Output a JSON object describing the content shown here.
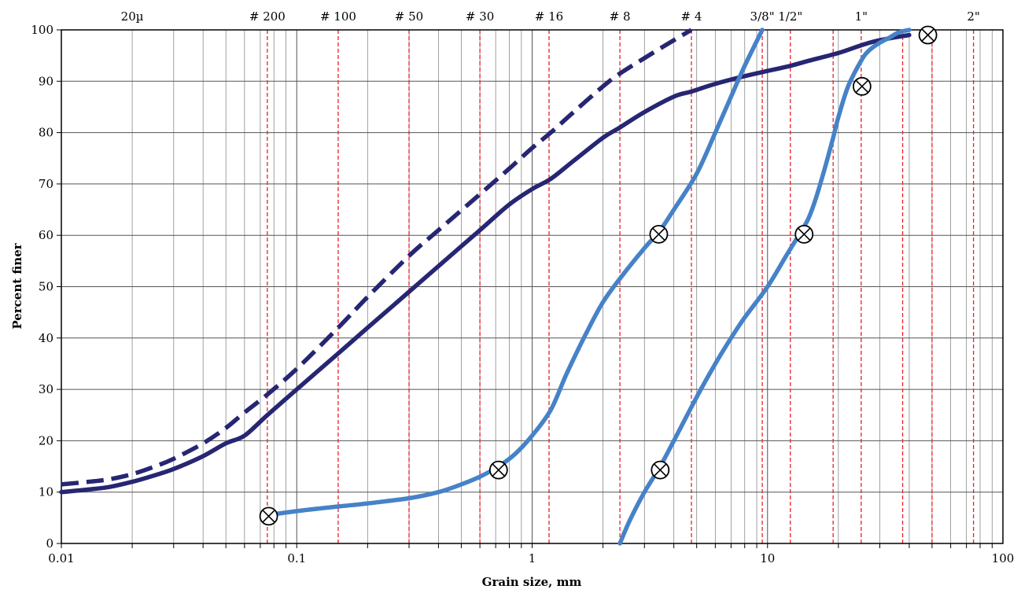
{
  "chart_data": {
    "type": "line",
    "title": "",
    "xlabel": "Grain size, mm",
    "ylabel": "Percent finer",
    "xscale": "log",
    "xlim": [
      0.01,
      100
    ],
    "ylim": [
      0,
      100
    ],
    "x_ticks": [
      {
        "value": 0.01,
        "label": "0.01"
      },
      {
        "value": 0.1,
        "label": "0.1"
      },
      {
        "value": 1,
        "label": "1"
      },
      {
        "value": 10,
        "label": "10"
      },
      {
        "value": 100,
        "label": "100"
      }
    ],
    "y_ticks": [
      {
        "value": 0,
        "label": "0"
      },
      {
        "value": 10,
        "label": "10"
      },
      {
        "value": 20,
        "label": "20"
      },
      {
        "value": 30,
        "label": "30"
      },
      {
        "value": 40,
        "label": "40"
      },
      {
        "value": 50,
        "label": "50"
      },
      {
        "value": 60,
        "label": "60"
      },
      {
        "value": 70,
        "label": "70"
      },
      {
        "value": 80,
        "label": "80"
      },
      {
        "value": 90,
        "label": "90"
      },
      {
        "value": 100,
        "label": "100"
      }
    ],
    "top_labels": [
      {
        "value": 0.02,
        "label": "20µ",
        "line": false
      },
      {
        "value": 0.075,
        "label": "# 200",
        "line": true
      },
      {
        "value": 0.15,
        "label": "# 100",
        "line": true
      },
      {
        "value": 0.3,
        "label": "# 50",
        "line": true
      },
      {
        "value": 0.6,
        "label": "# 30",
        "line": true
      },
      {
        "value": 1.18,
        "label": "# 16",
        "line": true
      },
      {
        "value": 2.36,
        "label": "# 8",
        "line": true
      },
      {
        "value": 4.75,
        "label": "# 4",
        "line": true
      },
      {
        "value": 9.5,
        "label": "3/8\"",
        "line": true
      },
      {
        "value": 12.5,
        "label": "1/2\"",
        "line": true
      },
      {
        "value": 19,
        "label": "",
        "line": true
      },
      {
        "value": 25,
        "label": "1\"",
        "line": true
      },
      {
        "value": 37.5,
        "label": "",
        "line": true
      },
      {
        "value": 50,
        "label": "",
        "line": true
      },
      {
        "value": 75,
        "label": "2\"",
        "line": true
      }
    ],
    "grid": true,
    "series": [
      {
        "style": "solid",
        "color": "#262673",
        "x": [
          0.01,
          0.013,
          0.016,
          0.02,
          0.025,
          0.03,
          0.04,
          0.05,
          0.06,
          0.075,
          0.1,
          0.15,
          0.2,
          0.3,
          0.4,
          0.6,
          0.8,
          1.0,
          1.2,
          1.5,
          2.0,
          2.36,
          3.0,
          4.0,
          4.75,
          6.0,
          8.0,
          10,
          12.5,
          15,
          20,
          25,
          30,
          40
        ],
        "y": [
          10,
          10.5,
          11,
          12,
          13.3,
          14.5,
          17,
          19.5,
          21,
          25,
          30,
          37,
          42,
          49,
          54,
          61,
          66,
          69,
          71,
          74.5,
          79,
          81,
          84,
          87,
          88,
          89.5,
          91,
          92,
          93,
          94,
          95.5,
          97,
          98,
          99
        ]
      },
      {
        "style": "dashed",
        "color": "#262673",
        "x": [
          0.01,
          0.013,
          0.016,
          0.02,
          0.025,
          0.03,
          0.04,
          0.05,
          0.06,
          0.075,
          0.1,
          0.15,
          0.2,
          0.3,
          0.4,
          0.6,
          0.8,
          1.0,
          1.2,
          1.5,
          2.0,
          2.36,
          3.0,
          4.0,
          4.75
        ],
        "y": [
          11.5,
          12,
          12.5,
          13.5,
          15,
          16.5,
          19.5,
          22.5,
          25.5,
          29,
          34,
          42,
          48,
          56,
          61,
          68,
          73,
          77,
          80,
          84,
          89,
          91.5,
          94.5,
          98,
          100
        ]
      },
      {
        "style": "solid",
        "color": "#4682c8",
        "x": [
          0.075,
          0.1,
          0.15,
          0.2,
          0.3,
          0.4,
          0.5,
          0.6,
          0.72,
          0.85,
          1.0,
          1.2,
          1.4,
          1.7,
          2.0,
          2.4,
          3.0,
          3.5,
          4.0,
          5.0,
          6.0,
          7.0,
          8.0,
          9.5
        ],
        "y": [
          5.5,
          6.3,
          7.2,
          7.8,
          8.8,
          10,
          11.5,
          13,
          15,
          17.5,
          21,
          26,
          33,
          41,
          47,
          52,
          57.5,
          61,
          65,
          72,
          80,
          87,
          93,
          100
        ]
      },
      {
        "style": "solid",
        "color": "#4682c8",
        "x": [
          2.36,
          2.6,
          3.0,
          3.5,
          4.0,
          5.0,
          6.0,
          7.0,
          8.0,
          10,
          12,
          14,
          15,
          16,
          17,
          18,
          19,
          20,
          22,
          25,
          27,
          30,
          33,
          36,
          40
        ],
        "y": [
          0,
          4.5,
          10,
          15,
          20,
          28.5,
          35,
          40,
          44,
          50,
          56,
          61,
          63.5,
          67,
          71,
          75,
          79,
          83,
          89,
          94,
          96,
          97.5,
          98.5,
          99.5,
          100
        ]
      }
    ],
    "markers": [
      {
        "x": 0.076,
        "y": 5.3,
        "symbol": "circle-x"
      },
      {
        "x": 0.72,
        "y": 14.3,
        "symbol": "circle-x"
      },
      {
        "x": 3.45,
        "y": 60.2,
        "symbol": "circle-x"
      },
      {
        "x": 3.5,
        "y": 14.3,
        "symbol": "circle-x"
      },
      {
        "x": 14.3,
        "y": 60.2,
        "symbol": "circle-x"
      },
      {
        "x": 25.2,
        "y": 89,
        "symbol": "circle-x"
      },
      {
        "x": 48,
        "y": 99,
        "symbol": "circle-x"
      }
    ]
  }
}
